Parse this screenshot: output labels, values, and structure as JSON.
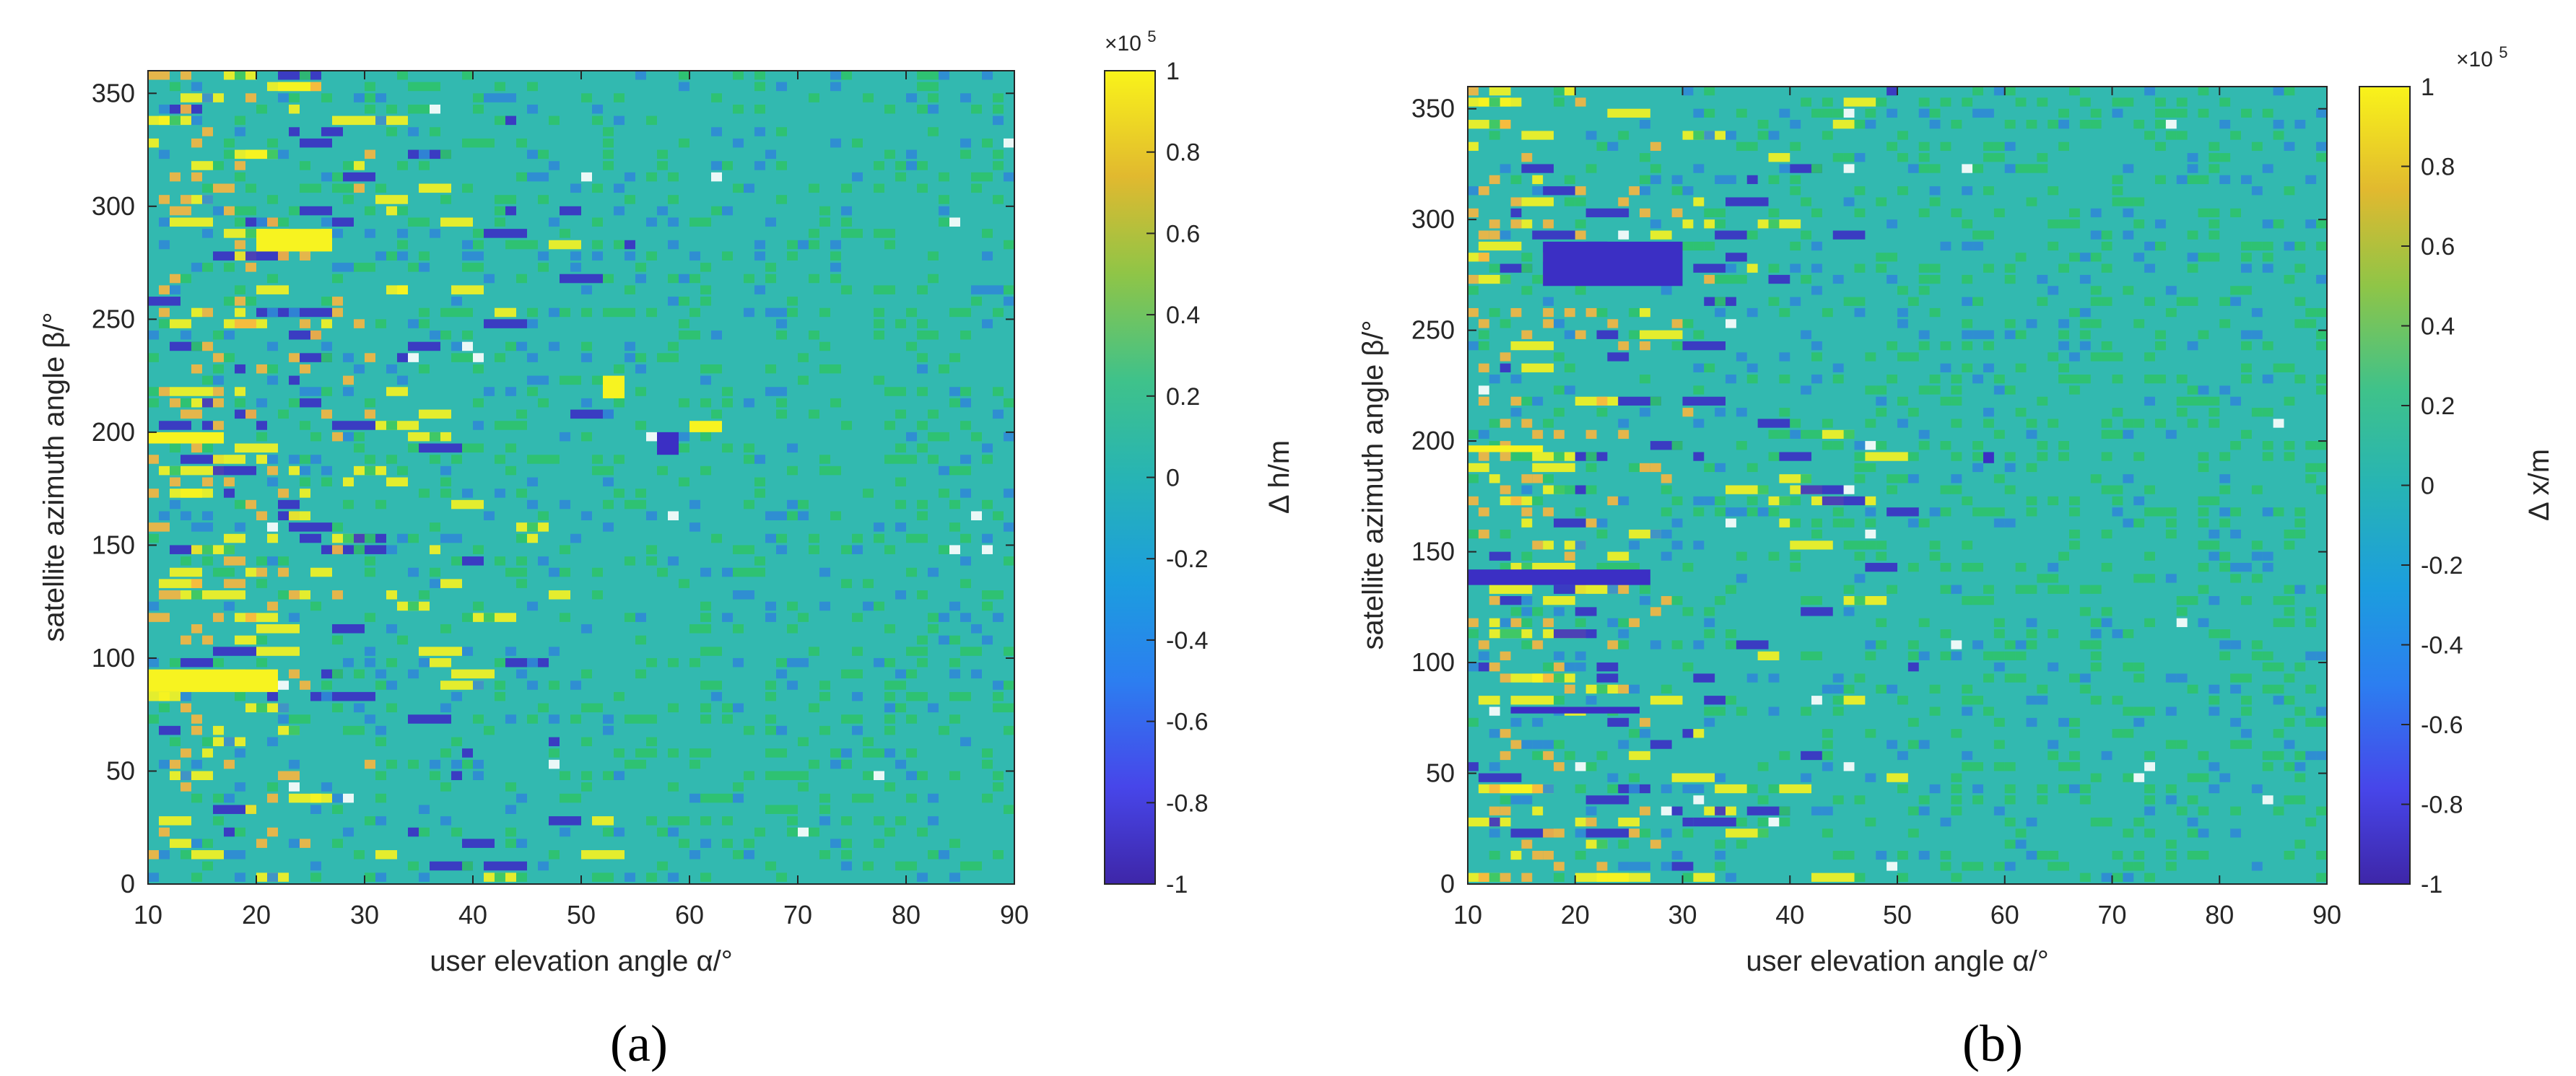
{
  "figure": {
    "panels": [
      "(a)",
      "(b)"
    ]
  },
  "colorbar": {
    "cmap": "parula",
    "ticks": [
      "1",
      "0.8",
      "0.6",
      "0.4",
      "0.2",
      "0",
      "-0.2",
      "-0.4",
      "-0.6",
      "-0.8",
      "-1"
    ],
    "exponent": "×10",
    "exponent_power": "5"
  },
  "colors": {
    "background": "#32b9b0",
    "yellow": "#f7f320",
    "orange": "#f7b640",
    "green": "#2ec36c",
    "light_green": "#7fc94a",
    "blue": "#2f8ad6",
    "dark_blue": "#3b2fc4",
    "white": "#ffffff"
  },
  "chart_data": [
    {
      "type": "heatmap",
      "panel_label": "(a)",
      "xlabel": "user elevation angle α/°",
      "ylabel": "satellite azimuth angle β/°",
      "colorbar_label": "Δ h/m",
      "xlim": [
        10,
        90
      ],
      "ylim": [
        0,
        360
      ],
      "xticks": [
        10,
        20,
        30,
        40,
        50,
        60,
        70,
        80,
        90
      ],
      "yticks": [
        0,
        50,
        100,
        150,
        200,
        250,
        300,
        350
      ],
      "clim": [
        -100000,
        100000
      ],
      "dominant_value": 0,
      "notable_features": [
        {
          "x": [
            10,
            22
          ],
          "y": [
            85,
            95
          ],
          "value": 100000
        },
        {
          "x": [
            10,
            17
          ],
          "y": [
            195,
            200
          ],
          "value": 100000
        },
        {
          "x": [
            20,
            27
          ],
          "y": [
            280,
            290
          ],
          "value": 100000
        },
        {
          "x": [
            57,
            59
          ],
          "y": [
            190,
            200
          ],
          "value": -100000
        },
        {
          "x": [
            60,
            63
          ],
          "y": [
            200,
            205
          ],
          "value": 100000
        },
        {
          "x": [
            52,
            54
          ],
          "y": [
            215,
            225
          ],
          "value": 100000
        }
      ]
    },
    {
      "type": "heatmap",
      "panel_label": "(b)",
      "xlabel": "user elevation angle α/°",
      "ylabel": "satellite azimuth angle β/°",
      "colorbar_label": "Δ x/m",
      "xlim": [
        10,
        90
      ],
      "ylim": [
        0,
        360
      ],
      "xticks": [
        10,
        20,
        30,
        40,
        50,
        60,
        70,
        80,
        90
      ],
      "yticks": [
        0,
        50,
        100,
        150,
        200,
        250,
        300,
        350
      ],
      "clim": [
        -100000,
        100000
      ],
      "dominant_value": 0,
      "notable_features": [
        {
          "x": [
            17,
            30
          ],
          "y": [
            270,
            290
          ],
          "value": -100000
        },
        {
          "x": [
            10,
            27
          ],
          "y": [
            135,
            142
          ],
          "value": -100000
        },
        {
          "x": [
            10,
            17
          ],
          "y": [
            195,
            198
          ],
          "value": 100000
        },
        {
          "x": [
            14,
            26
          ],
          "y": [
            77,
            80
          ],
          "value": -100000
        },
        {
          "x": [
            58,
            59
          ],
          "y": [
            190,
            195
          ],
          "value": -100000
        }
      ]
    }
  ]
}
